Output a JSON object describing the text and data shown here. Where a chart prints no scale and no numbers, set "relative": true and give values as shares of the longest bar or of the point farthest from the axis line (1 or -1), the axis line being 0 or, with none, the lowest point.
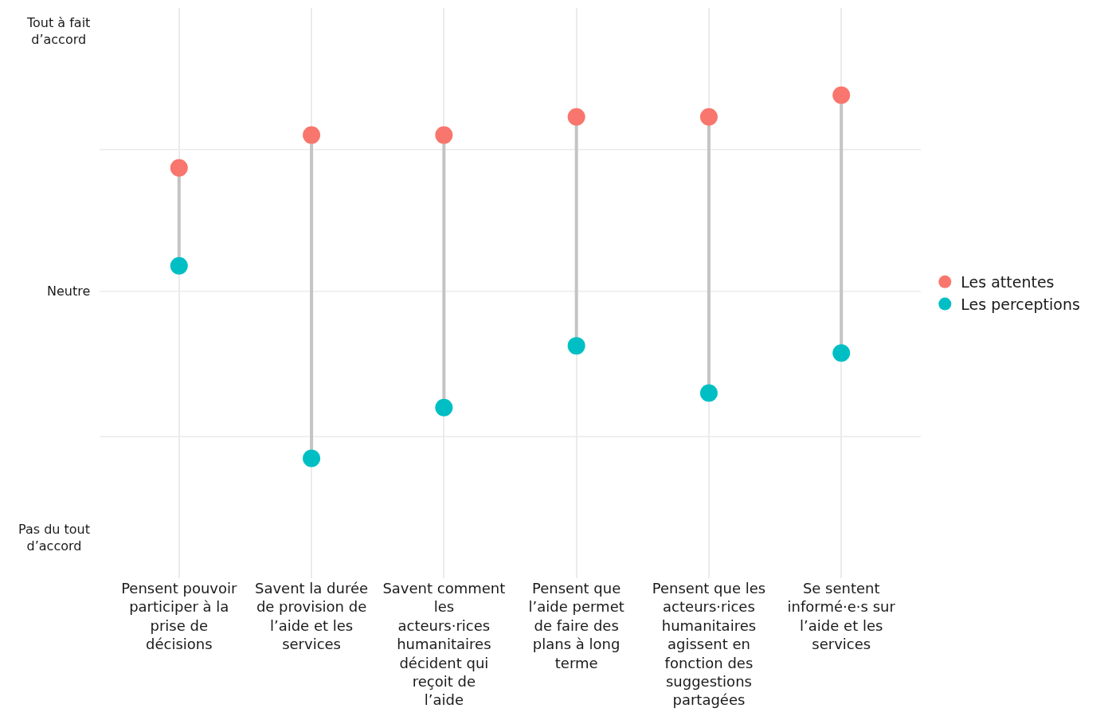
{
  "chart_data": {
    "type": "scatter",
    "categories": [
      "Pensent pouvoir participer à la prise de décisions",
      "Savent la durée de provision de l’aide et les services",
      "Savent comment les acteurs·rices humanitaires décident qui reçoit de l’aide",
      "Pensent que l’aide permet de faire des plans à long terme",
      "Pensent que les acteurs·rices humanitaires agissent en fonction des suggestions partagées",
      "Se sentent informé·e·s sur l’aide et les services"
    ],
    "series": [
      {
        "name": "Les attentes",
        "color": "#f8766d",
        "values": [
          0.8,
          0.89,
          0.89,
          0.94,
          0.94,
          1
        ]
      },
      {
        "name": "Les perceptions",
        "color": "#00bfc4",
        "values": [
          0.53,
          0,
          0.14,
          0.31,
          0.18,
          0.29
        ]
      }
    ],
    "relative": true,
    "ref_lines": [
      {
        "axis": "y",
        "value": 0.85,
        "color": "#ebebeb"
      },
      {
        "axis": "y",
        "value": 0.46,
        "label": "Neutre",
        "color": "#ebebeb"
      },
      {
        "axis": "y",
        "value": 0.06,
        "color": "#ebebeb"
      }
    ],
    "annotations": [
      "Tout à fait d’accord",
      "Pas du tout d’accord"
    ],
    "grid": "x",
    "legend": "right",
    "marker": "circle"
  }
}
